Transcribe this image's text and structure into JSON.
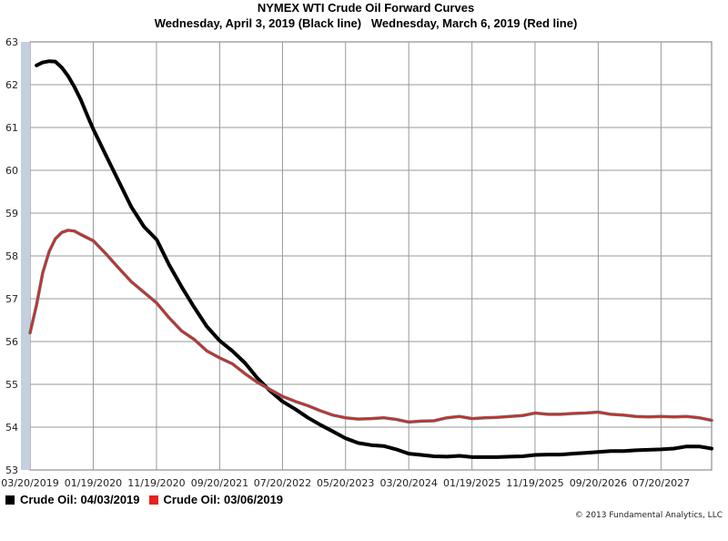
{
  "chart_data": {
    "type": "line",
    "title": "NYMEX WTI Crude Oil Forward Curves",
    "subtitle": "Wednesday, April 3, 2019 (Black line)   Wednesday, March 6, 2019 (Red line)",
    "xlabel": "",
    "ylabel": "",
    "ylim": [
      53,
      63
    ],
    "yticks": [
      53,
      54,
      55,
      56,
      57,
      58,
      59,
      60,
      61,
      62,
      63
    ],
    "xlim": [
      "2019-03-20",
      "2028-03-20"
    ],
    "xticks": [
      {
        "label": "03/20/2019",
        "date": "2019-03-20"
      },
      {
        "label": "01/19/2020",
        "date": "2020-01-19"
      },
      {
        "label": "11/19/2020",
        "date": "2020-11-19"
      },
      {
        "label": "09/20/2021",
        "date": "2021-09-20"
      },
      {
        "label": "07/20/2022",
        "date": "2022-07-20"
      },
      {
        "label": "05/20/2023",
        "date": "2023-05-20"
      },
      {
        "label": "03/20/2024",
        "date": "2024-03-20"
      },
      {
        "label": "01/19/2025",
        "date": "2025-01-19"
      },
      {
        "label": "11/19/2025",
        "date": "2025-11-19"
      },
      {
        "label": "09/20/2026",
        "date": "2026-09-20"
      },
      {
        "label": "07/20/2027",
        "date": "2027-07-20"
      }
    ],
    "grid": true,
    "legend_position": "bottom-left",
    "series": [
      {
        "name": "Crude Oil: 04/03/2019",
        "color": "#000000",
        "points": [
          [
            "2019-04-20",
            62.45
          ],
          [
            "2019-05-20",
            62.52
          ],
          [
            "2019-06-20",
            62.55
          ],
          [
            "2019-07-20",
            62.54
          ],
          [
            "2019-08-20",
            62.4
          ],
          [
            "2019-09-20",
            62.2
          ],
          [
            "2019-10-20",
            61.95
          ],
          [
            "2019-11-20",
            61.65
          ],
          [
            "2019-12-20",
            61.3
          ],
          [
            "2020-01-20",
            60.95
          ],
          [
            "2020-03-20",
            60.35
          ],
          [
            "2020-05-20",
            59.75
          ],
          [
            "2020-07-20",
            59.15
          ],
          [
            "2020-09-20",
            58.68
          ],
          [
            "2020-11-20",
            58.38
          ],
          [
            "2021-01-20",
            57.78
          ],
          [
            "2021-03-20",
            57.28
          ],
          [
            "2021-05-20",
            56.8
          ],
          [
            "2021-07-20",
            56.35
          ],
          [
            "2021-09-20",
            56.02
          ],
          [
            "2021-11-20",
            55.78
          ],
          [
            "2022-01-20",
            55.5
          ],
          [
            "2022-03-20",
            55.15
          ],
          [
            "2022-05-20",
            54.85
          ],
          [
            "2022-07-20",
            54.6
          ],
          [
            "2022-09-20",
            54.42
          ],
          [
            "2022-11-20",
            54.22
          ],
          [
            "2023-01-20",
            54.05
          ],
          [
            "2023-03-20",
            53.9
          ],
          [
            "2023-05-20",
            53.74
          ],
          [
            "2023-07-20",
            53.63
          ],
          [
            "2023-09-20",
            53.58
          ],
          [
            "2023-11-20",
            53.56
          ],
          [
            "2024-01-20",
            53.48
          ],
          [
            "2024-03-20",
            53.38
          ],
          [
            "2024-05-20",
            53.35
          ],
          [
            "2024-07-20",
            53.32
          ],
          [
            "2024-09-20",
            53.31
          ],
          [
            "2024-11-20",
            53.33
          ],
          [
            "2025-01-20",
            53.3
          ],
          [
            "2025-03-20",
            53.3
          ],
          [
            "2025-05-20",
            53.3
          ],
          [
            "2025-07-20",
            53.31
          ],
          [
            "2025-09-20",
            53.32
          ],
          [
            "2025-11-20",
            53.35
          ],
          [
            "2026-01-20",
            53.36
          ],
          [
            "2026-03-20",
            53.36
          ],
          [
            "2026-05-20",
            53.38
          ],
          [
            "2026-07-20",
            53.4
          ],
          [
            "2026-09-20",
            53.42
          ],
          [
            "2026-11-20",
            53.44
          ],
          [
            "2027-01-20",
            53.44
          ],
          [
            "2027-03-20",
            53.46
          ],
          [
            "2027-05-20",
            53.47
          ],
          [
            "2027-07-20",
            53.48
          ],
          [
            "2027-09-20",
            53.5
          ],
          [
            "2027-11-20",
            53.55
          ],
          [
            "2028-01-20",
            53.55
          ],
          [
            "2028-03-20",
            53.5
          ]
        ]
      },
      {
        "name": "Crude Oil: 03/06/2019",
        "color": "#e8201c",
        "points": [
          [
            "2019-03-20",
            56.2
          ],
          [
            "2019-04-20",
            56.85
          ],
          [
            "2019-05-20",
            57.6
          ],
          [
            "2019-06-20",
            58.1
          ],
          [
            "2019-07-20",
            58.4
          ],
          [
            "2019-08-20",
            58.55
          ],
          [
            "2019-09-20",
            58.6
          ],
          [
            "2019-10-20",
            58.58
          ],
          [
            "2019-11-20",
            58.5
          ],
          [
            "2020-01-20",
            58.35
          ],
          [
            "2020-03-20",
            58.05
          ],
          [
            "2020-05-20",
            57.72
          ],
          [
            "2020-07-20",
            57.4
          ],
          [
            "2020-09-20",
            57.15
          ],
          [
            "2020-11-20",
            56.9
          ],
          [
            "2021-01-20",
            56.55
          ],
          [
            "2021-03-20",
            56.25
          ],
          [
            "2021-05-20",
            56.05
          ],
          [
            "2021-07-20",
            55.78
          ],
          [
            "2021-09-20",
            55.62
          ],
          [
            "2021-11-20",
            55.48
          ],
          [
            "2022-01-20",
            55.25
          ],
          [
            "2022-03-20",
            55.05
          ],
          [
            "2022-05-20",
            54.88
          ],
          [
            "2022-07-20",
            54.72
          ],
          [
            "2022-09-20",
            54.6
          ],
          [
            "2022-11-20",
            54.5
          ],
          [
            "2023-01-20",
            54.38
          ],
          [
            "2023-03-20",
            54.28
          ],
          [
            "2023-05-20",
            54.22
          ],
          [
            "2023-07-20",
            54.19
          ],
          [
            "2023-09-20",
            54.2
          ],
          [
            "2023-11-20",
            54.22
          ],
          [
            "2024-01-20",
            54.18
          ],
          [
            "2024-03-20",
            54.12
          ],
          [
            "2024-05-20",
            54.14
          ],
          [
            "2024-07-20",
            54.15
          ],
          [
            "2024-09-20",
            54.22
          ],
          [
            "2024-11-20",
            54.25
          ],
          [
            "2025-01-20",
            54.2
          ],
          [
            "2025-03-20",
            54.22
          ],
          [
            "2025-05-20",
            54.23
          ],
          [
            "2025-07-20",
            54.25
          ],
          [
            "2025-09-20",
            54.27
          ],
          [
            "2025-11-20",
            54.33
          ],
          [
            "2026-01-20",
            54.3
          ],
          [
            "2026-03-20",
            54.3
          ],
          [
            "2026-05-20",
            54.32
          ],
          [
            "2026-07-20",
            54.33
          ],
          [
            "2026-09-20",
            54.35
          ],
          [
            "2026-11-20",
            54.3
          ],
          [
            "2027-01-20",
            54.28
          ],
          [
            "2027-03-20",
            54.25
          ],
          [
            "2027-05-20",
            54.24
          ],
          [
            "2027-07-20",
            54.25
          ],
          [
            "2027-09-20",
            54.24
          ],
          [
            "2027-11-20",
            54.25
          ],
          [
            "2028-01-20",
            54.22
          ],
          [
            "2028-03-20",
            54.16
          ]
        ]
      }
    ]
  },
  "copyright": "© 2013 Fundamental Analytics, LLC"
}
